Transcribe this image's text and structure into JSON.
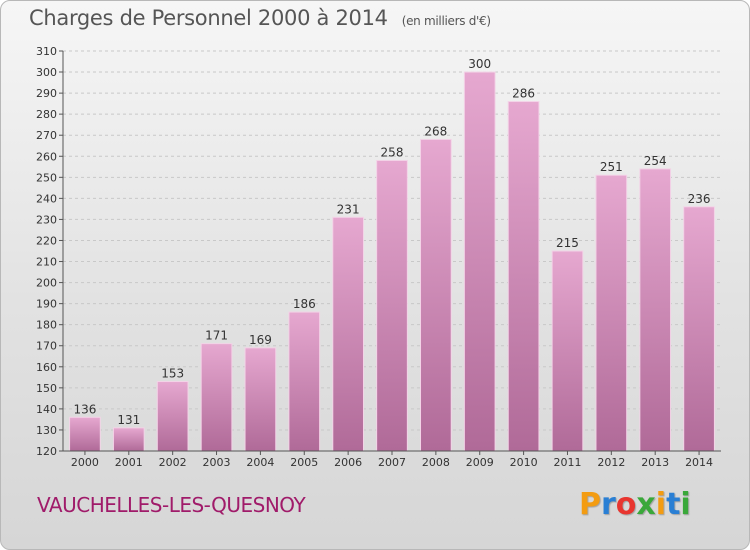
{
  "title": "Charges de Personnel 2000 à 2014",
  "subtitle": "(en milliers d'€)",
  "commune": "VAUCHELLES-LES-QUESNOY",
  "logo": {
    "text": "Proxiti",
    "letters": [
      "P",
      "r",
      "o",
      "x",
      "i",
      "t",
      "i"
    ],
    "colors": [
      "#f39c12",
      "#2a7fd4",
      "#e8352f",
      "#3aa83a",
      "#f39c12",
      "#2a7fd4",
      "#3aa83a"
    ]
  },
  "colors": {
    "bar_top": "#e6a8d0",
    "bar_bottom": "#b06a98",
    "commune": "#a01b6a"
  },
  "chart_data": {
    "type": "bar",
    "categories": [
      "2000",
      "2001",
      "2002",
      "2003",
      "2004",
      "2005",
      "2006",
      "2007",
      "2008",
      "2009",
      "2010",
      "2011",
      "2012",
      "2013",
      "2014"
    ],
    "values": [
      136,
      131,
      153,
      171,
      169,
      186,
      231,
      258,
      268,
      300,
      286,
      215,
      251,
      254,
      236
    ],
    "ylim": [
      120,
      310
    ],
    "yticks": [
      120,
      130,
      140,
      150,
      160,
      170,
      180,
      190,
      200,
      210,
      220,
      230,
      240,
      250,
      260,
      270,
      280,
      290,
      300,
      310
    ],
    "grid": true
  }
}
